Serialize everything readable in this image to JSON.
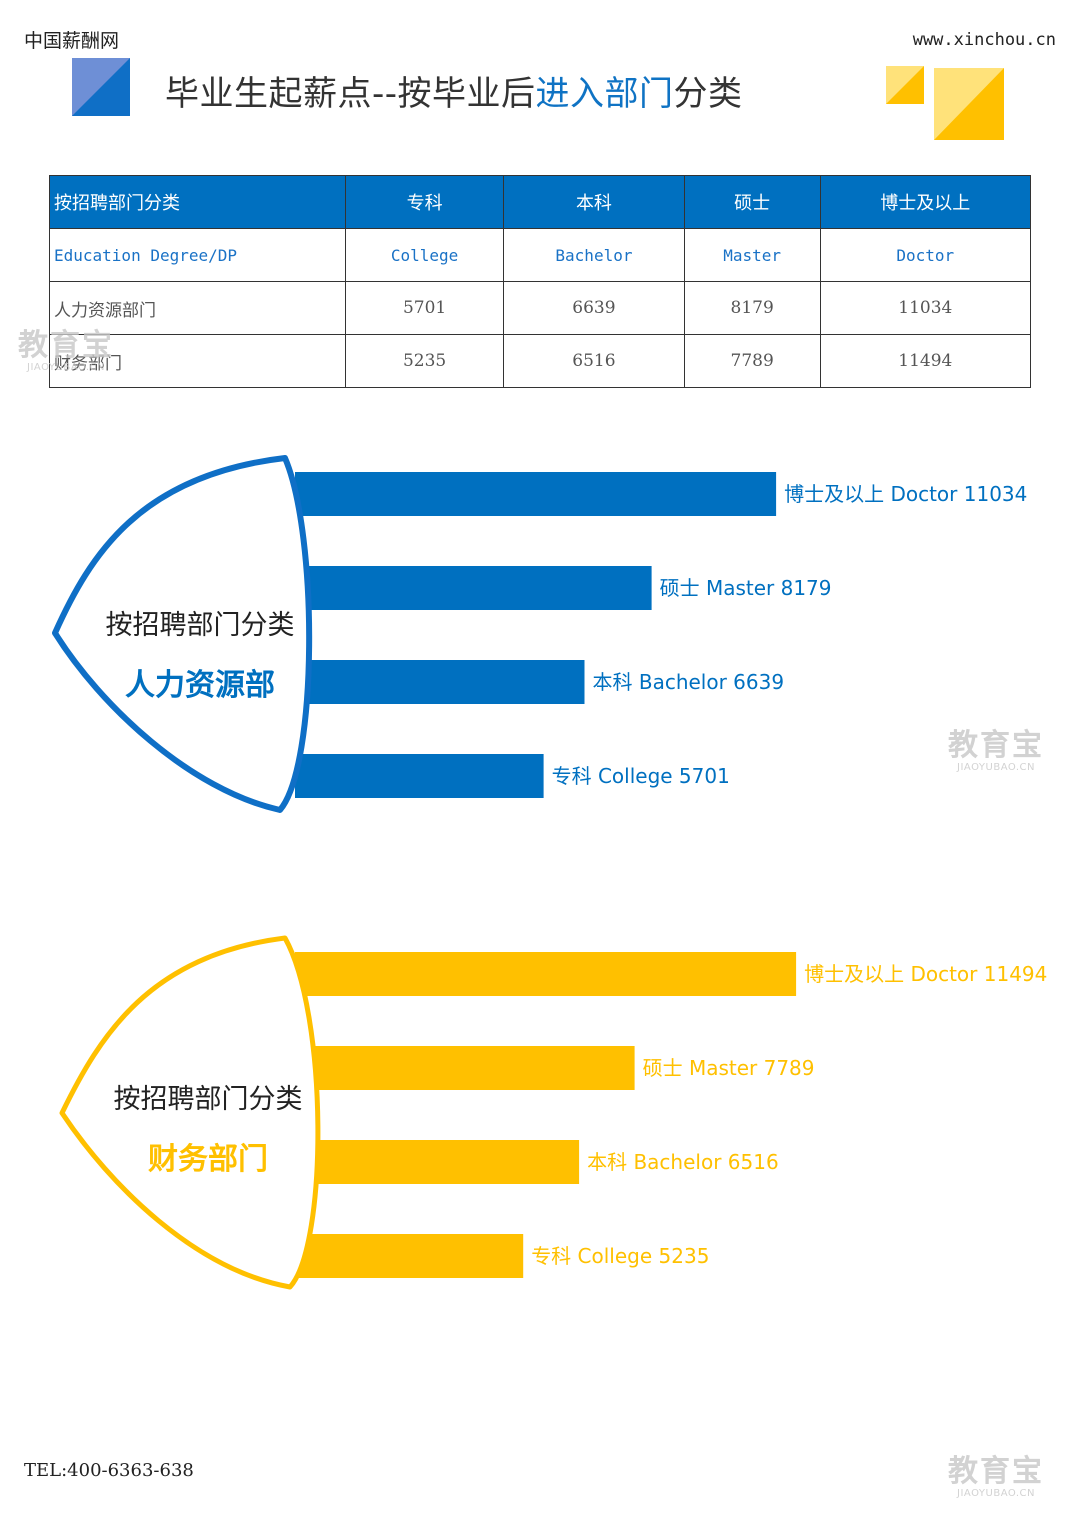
{
  "header": {
    "brand": "中国薪酬网",
    "site": "www.xinchou.cn",
    "title_prefix": "毕业生起薪点--按毕业后",
    "title_highlight": "进入部门",
    "title_suffix": "分类"
  },
  "table": {
    "headers": [
      "按招聘部门分类",
      "专科",
      "本科",
      "硕士",
      "博士及以上"
    ],
    "en_row": [
      "Education Degree/DP",
      "College",
      "Bachelor",
      "Master",
      "Doctor"
    ],
    "rows": [
      [
        "人力资源部门",
        "5701",
        "6639",
        "8179",
        "11034"
      ],
      [
        "财务部门",
        "5235",
        "6516",
        "7789",
        "11494"
      ]
    ]
  },
  "chart_data": [
    {
      "type": "bar",
      "orientation": "horizontal",
      "heading": "按招聘部门分类",
      "department": "人力资源部",
      "color": "#0070c0",
      "categories": [
        "博士及以上 Doctor",
        "硕士 Master",
        "本科 Bachelor",
        "专科 College"
      ],
      "values": [
        11034,
        8179,
        6639,
        5701
      ]
    },
    {
      "type": "bar",
      "orientation": "horizontal",
      "heading": "按招聘部门分类",
      "department": "财务部门",
      "color": "#ffc000",
      "categories": [
        "博士及以上 Doctor",
        "硕士 Master",
        "本科 Bachelor",
        "专科 College"
      ],
      "values": [
        11494,
        7789,
        6516,
        5235
      ]
    }
  ],
  "watermark": {
    "big": "教育宝",
    "small": "JIAOYUBAO.CN"
  },
  "footer": {
    "tel": "TEL:400-6363-638"
  }
}
